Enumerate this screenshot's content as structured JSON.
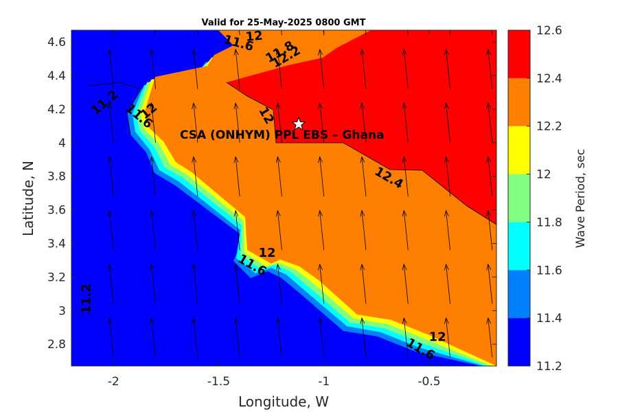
{
  "chart_data": {
    "type": "heatmap",
    "title": "Valid for 25-May-2025 0800 GMT",
    "xlabel": "Longitude, W",
    "ylabel": "Latitude, N",
    "xlim": [
      -2.2,
      -0.18
    ],
    "ylim": [
      2.67,
      4.67
    ],
    "xticks": [
      -2,
      -1.5,
      -1,
      -0.5
    ],
    "xtick_labels": [
      "-2",
      "-1.5",
      "-1",
      "-0.5"
    ],
    "yticks": [
      2.8,
      3,
      3.2,
      3.4,
      3.6,
      3.8,
      4,
      4.2,
      4.4,
      4.6
    ],
    "ytick_labels": [
      "2.8",
      "3",
      "3.2",
      "3.4",
      "3.6",
      "3.8",
      "4",
      "4.2",
      "4.4",
      "4.6"
    ],
    "colorbar": {
      "label": "Wave Period, sec",
      "levels": [
        11.2,
        11.4,
        11.6,
        11.8,
        12,
        12.2,
        12.4,
        12.6
      ],
      "tick_labels": [
        "11.2",
        "11.4",
        "11.6",
        "11.8",
        "12",
        "12.2",
        "12.4",
        "12.6"
      ],
      "colors": [
        "#0000ff",
        "#0080ff",
        "#00ffff",
        "#80ff80",
        "#ffff00",
        "#ff8000",
        "#ff0000"
      ]
    },
    "marker": {
      "label": "CSA (ONHYM) PPL EBS  – Ghana",
      "lon": -1.12,
      "lat": 4.11,
      "symbol": "star"
    },
    "contour_labels": [
      {
        "text": "11.2",
        "lon": -2.03,
        "lat": 4.22,
        "rot": -40
      },
      {
        "text": "11.2",
        "lon": -2.11,
        "lat": 3.07,
        "rot": -90
      },
      {
        "text": "12",
        "lon": -1.33,
        "lat": 4.61,
        "rot": -5
      },
      {
        "text": "11.6",
        "lon": -1.41,
        "lat": 4.57,
        "rot": 15
      },
      {
        "text": "12.2",
        "lon": -1.17,
        "lat": 4.49,
        "rot": -30
      },
      {
        "text": "11.8",
        "lon": -1.2,
        "lat": 4.52,
        "rot": -30
      },
      {
        "text": "12",
        "lon": -1.82,
        "lat": 4.17,
        "rot": -40
      },
      {
        "text": "11.6",
        "lon": -1.89,
        "lat": 4.14,
        "rot": 40
      },
      {
        "text": "12",
        "lon": -1.29,
        "lat": 4.15,
        "rot": 60
      },
      {
        "text": "12.4",
        "lon": -0.7,
        "lat": 3.77,
        "rot": 30
      },
      {
        "text": "12",
        "lon": -1.27,
        "lat": 3.32,
        "rot": 0
      },
      {
        "text": "11.6",
        "lon": -1.35,
        "lat": 3.25,
        "rot": 30
      },
      {
        "text": "12",
        "lon": -0.46,
        "lat": 2.82,
        "rot": 0
      },
      {
        "text": "11.6",
        "lon": -0.55,
        "lat": 2.75,
        "rot": 30
      }
    ],
    "wind_arrows": {
      "direction_deg_from_north": -6,
      "x_spacing_lon": 0.2,
      "y_spacing_lat": 0.32
    },
    "grid": false,
    "legend": "none"
  }
}
